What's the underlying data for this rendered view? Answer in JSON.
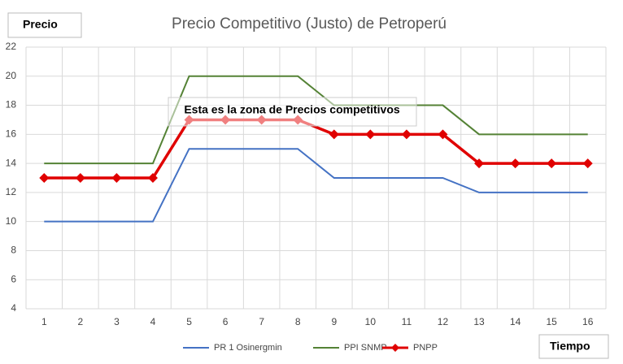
{
  "chart_data": {
    "type": "line",
    "title": "Precio Competitivo  (Justo) de Petroperú",
    "y_label": "Precio",
    "x_label": "Tiempo",
    "annotation": "Esta es la zona de Precios competitivos",
    "categories": [
      "1",
      "2",
      "3",
      "4",
      "5",
      "6",
      "7",
      "8",
      "9",
      "10",
      "11",
      "12",
      "13",
      "14",
      "15",
      "16"
    ],
    "series": [
      {
        "name": "PR 1 Osinergmin",
        "color": "#4472c4",
        "markers": false,
        "values": [
          10,
          10,
          10,
          10,
          15,
          15,
          15,
          15,
          13,
          13,
          13,
          13,
          12,
          12,
          12,
          12
        ]
      },
      {
        "name": "PPI SNMP",
        "color": "#548235",
        "markers": false,
        "values": [
          14,
          14,
          14,
          14,
          20,
          20,
          20,
          20,
          18,
          18,
          18,
          18,
          16,
          16,
          16,
          16
        ]
      },
      {
        "name": "PNPP",
        "color": "#e00000",
        "markers": true,
        "values": [
          13,
          13,
          13,
          13,
          17,
          17,
          17,
          17,
          16,
          16,
          16,
          16,
          14,
          14,
          14,
          14
        ]
      }
    ],
    "ylim": [
      4,
      22
    ],
    "yticks": [
      4,
      6,
      8,
      10,
      12,
      14,
      16,
      18,
      20,
      22
    ],
    "grid": true,
    "legend": "bottom"
  }
}
